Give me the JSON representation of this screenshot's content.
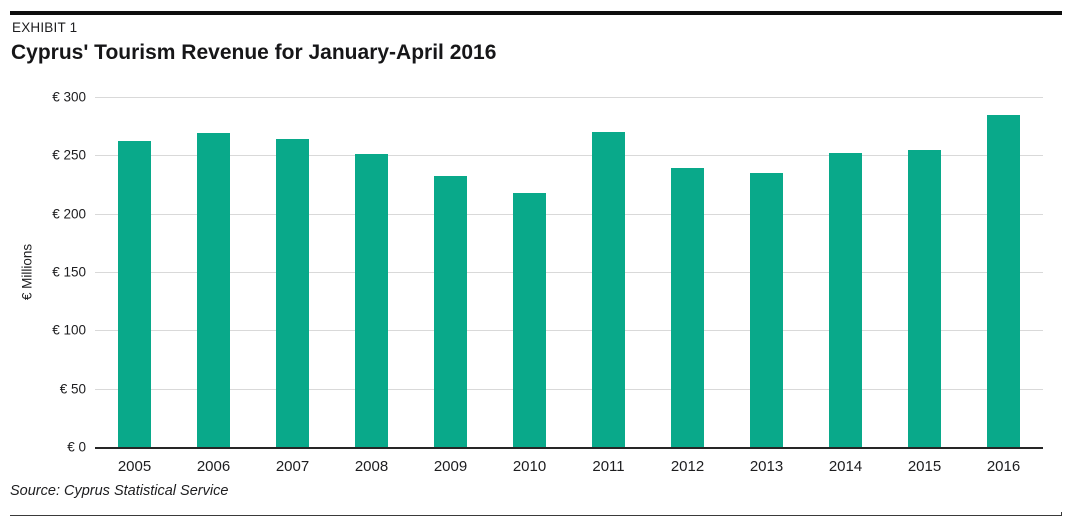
{
  "header": {
    "exhibit": "EXHIBIT 1",
    "title": "Cyprus' Tourism Revenue for January-April 2016"
  },
  "chart_data": {
    "type": "bar",
    "title": "Cyprus' Tourism Revenue for January-April 2016",
    "categories": [
      "2005",
      "2006",
      "2007",
      "2008",
      "2009",
      "2010",
      "2011",
      "2012",
      "2013",
      "2014",
      "2015",
      "2016"
    ],
    "values": [
      262,
      269,
      264,
      251,
      232,
      218,
      270,
      239,
      235,
      252,
      255,
      285
    ],
    "xlabel": "",
    "ylabel": "€ Millions",
    "ylim": [
      0,
      300
    ],
    "yticks": [
      "€ 300",
      "€ 250",
      "€ 200",
      "€ 150",
      "€ 100",
      "€ 50",
      "€ 0"
    ],
    "ytick_values": [
      300,
      250,
      200,
      150,
      100,
      50,
      0
    ],
    "grid": true,
    "legend": "none",
    "bar_color": "#09a98a"
  },
  "footer": {
    "source": "Source: Cyprus Statistical Service"
  },
  "colors": {
    "bar": "#09a98a",
    "gridline": "#d9d9d9",
    "axis": "#262626",
    "accent_bar": "#0e0e0e",
    "text": "#1d1d1f"
  }
}
